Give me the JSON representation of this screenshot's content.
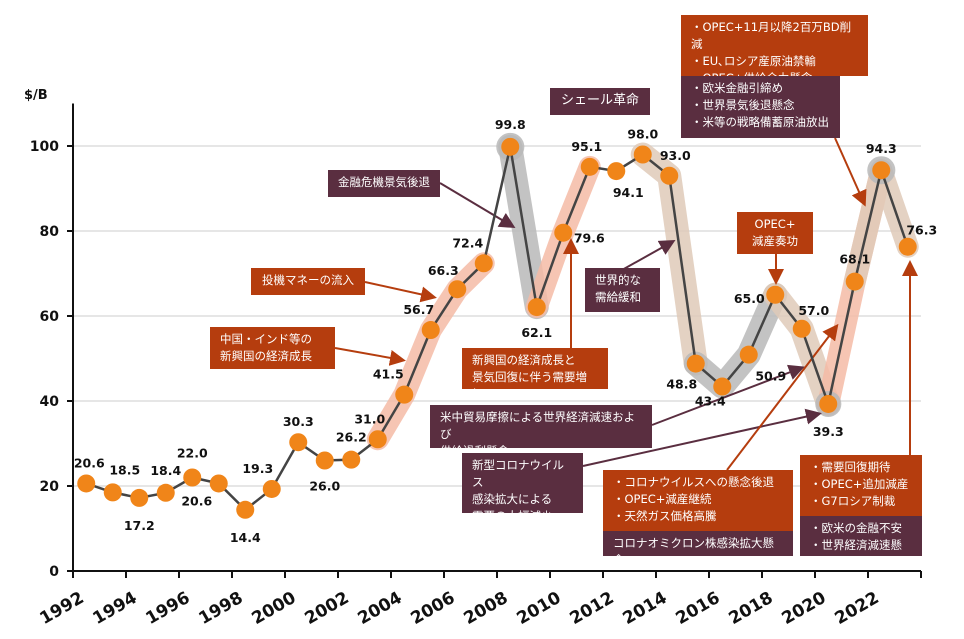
{
  "chart_data": {
    "type": "line",
    "ylabel": "$/B",
    "ylim": [
      0,
      110
    ],
    "yticks": [
      0,
      20,
      40,
      60,
      80,
      100
    ],
    "xtick_labels": [
      "1992",
      "1994",
      "1996",
      "1998",
      "2000",
      "2002",
      "2004",
      "2006",
      "2008",
      "2010",
      "2012",
      "2014",
      "2016",
      "2018",
      "2020",
      "2022"
    ],
    "x": [
      1992,
      1993,
      1994,
      1995,
      1996,
      1997,
      1998,
      1999,
      2000,
      2001,
      2002,
      2003,
      2004,
      2005,
      2006,
      2007,
      2008,
      2009,
      2010,
      2011,
      2012,
      2013,
      2014,
      2015,
      2016,
      2017,
      2018,
      2019,
      2020,
      2021,
      2022,
      2023
    ],
    "values": [
      20.6,
      18.5,
      17.2,
      18.4,
      22.0,
      20.6,
      14.4,
      19.3,
      30.3,
      26.0,
      26.2,
      31.0,
      41.5,
      56.7,
      66.3,
      72.4,
      99.8,
      62.1,
      79.6,
      95.1,
      94.1,
      98.0,
      93.0,
      48.8,
      43.4,
      50.9,
      65.0,
      57.0,
      39.3,
      68.1,
      94.3,
      76.3
    ],
    "data_labels": [
      "20.6",
      "18.5",
      "17.2",
      "18.4",
      "22.0",
      "20.6",
      "14.4",
      "19.3",
      "30.3",
      "26.0",
      "26.2",
      "31.0",
      "41.5",
      "56.7",
      "66.3",
      "72.4",
      "99.8",
      "62.1",
      "79.6",
      "95.1",
      "94.1",
      "98.0",
      "93.0",
      "48.8",
      "43.4",
      "50.9",
      "65.0",
      "57.0",
      "39.3",
      "68.1",
      "94.3",
      "76.3"
    ],
    "grid": "horizontal",
    "colors": {
      "line": "#444444",
      "marker": "#f08519",
      "rise_band": "#f4bba6",
      "fall_band": "#dfcab8",
      "neutral_band": "#b9b9b9",
      "orange_box": "#b53d0e",
      "purple_box": "#5a2e40"
    },
    "annotations": {
      "crisis": "金融危機景気後退",
      "speculative": "投機マネーの流入",
      "emerging": "中国・インド等の\n新興国の経済成長",
      "shale": "シェール革命",
      "recovery": "新興国の経済成長と\n景気回復に伴う需要増加",
      "glut": "世界的な\n需給緩和",
      "opec_cut": "OPEC+\n減産奏功",
      "trade_war": "米中貿易摩擦による世界経済減速および\n供給過剰懸念",
      "covid": "新型コロナウイルス\n感染拡大による\n需要の大幅減少",
      "covid_easing": "・コロナウイルスへの懸念後退\n・OPEC+減産継続\n・天然ガス価格高騰",
      "omicron": "コロナオミクロン株感染拡大懸念",
      "top_orange": "・OPEC+11月以降2百万BD削減\n・EU､ロシア産原油禁輸\n・OPEC+供給余力懸念",
      "top_purple": "・欧米金融引締め\n・世界景気後退懸念\n・米等の戦略備蓄原油放出",
      "br_orange": "・需要回復期待\n・OPEC+追加減産\n・G7ロシア制裁",
      "br_purple": "・欧米の金融不安\n・世界経済減速懸念"
    }
  }
}
